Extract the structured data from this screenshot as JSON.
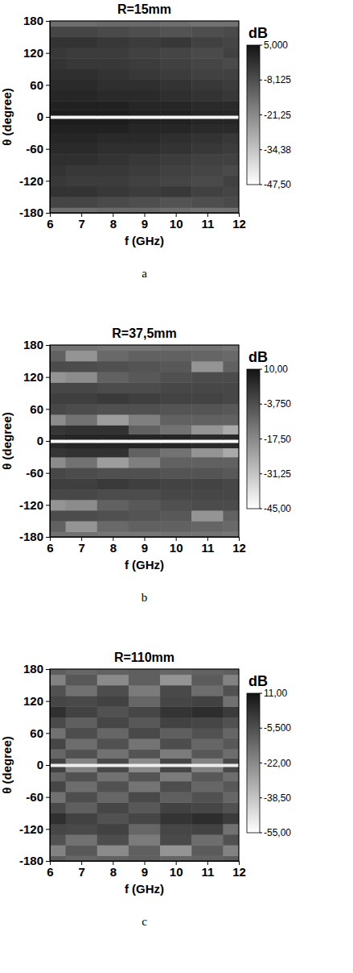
{
  "chart_data": [
    {
      "type": "heatmap",
      "title": "R=15mm",
      "panel_label": "a",
      "x_label": "f (GHz)",
      "y_label": "θ (degree)",
      "x": [
        6,
        7,
        8,
        9,
        10,
        11,
        12
      ],
      "y": [
        -180,
        -160,
        -140,
        -120,
        -100,
        -80,
        -60,
        -40,
        -20,
        -6,
        0,
        6,
        20,
        40,
        60,
        80,
        100,
        120,
        140,
        160,
        180
      ],
      "z": [
        [
          -15,
          -15,
          -14,
          -14,
          -15,
          -16,
          -16
        ],
        [
          -6,
          -6,
          -7,
          -8,
          -9,
          -8,
          -7
        ],
        [
          -2,
          -2,
          -3,
          -4,
          -3,
          -5,
          -6
        ],
        [
          -3,
          -4,
          -4,
          -5,
          -6,
          -7,
          -5
        ],
        [
          -2,
          -3,
          -3,
          -4,
          -5,
          -6,
          -7
        ],
        [
          -1,
          -1,
          -2,
          -3,
          -4,
          -5,
          -5
        ],
        [
          0,
          0,
          -1,
          -1,
          -2,
          -3,
          -4
        ],
        [
          1,
          1,
          0,
          0,
          -1,
          -2,
          -3
        ],
        [
          2,
          2,
          2,
          1,
          1,
          0,
          0
        ],
        [
          3,
          3,
          3,
          2,
          2,
          1,
          1
        ],
        [
          -45,
          -45,
          -45,
          -45,
          -45,
          -45,
          -45
        ],
        [
          3,
          3,
          3,
          2,
          2,
          1,
          1
        ],
        [
          2,
          2,
          2,
          1,
          1,
          0,
          0
        ],
        [
          1,
          1,
          0,
          0,
          -1,
          -2,
          -3
        ],
        [
          0,
          0,
          -1,
          -1,
          -2,
          -3,
          -4
        ],
        [
          -1,
          -1,
          -2,
          -3,
          -4,
          -5,
          -5
        ],
        [
          -2,
          -3,
          -3,
          -4,
          -5,
          -6,
          -7
        ],
        [
          -3,
          -4,
          -4,
          -5,
          -6,
          -7,
          -5
        ],
        [
          -2,
          -2,
          -3,
          -4,
          -3,
          -5,
          -6
        ],
        [
          -6,
          -6,
          -7,
          -8,
          -9,
          -8,
          -7
        ],
        [
          -15,
          -15,
          -14,
          -14,
          -15,
          -16,
          -16
        ]
      ],
      "xlim": [
        6,
        12
      ],
      "ylim": [
        -180,
        180
      ],
      "xticks": [
        6,
        7,
        8,
        9,
        10,
        11,
        12
      ],
      "yticks": [
        -180,
        -120,
        -60,
        0,
        60,
        120,
        180
      ],
      "colorbar": {
        "title": "dB",
        "range": [
          -47.5,
          5
        ],
        "ticks": [
          {
            "value": 5,
            "label": "5,000"
          },
          {
            "value": -8.125,
            "label": "-8,125"
          },
          {
            "value": -21.25,
            "label": "-21,25"
          },
          {
            "value": -34.375,
            "label": "-34,38"
          },
          {
            "value": -47.5,
            "label": "-47,50"
          }
        ]
      }
    },
    {
      "type": "heatmap",
      "title": "R=37,5mm",
      "panel_label": "b",
      "x_label": "f (GHz)",
      "y_label": "θ (degree)",
      "x": [
        6,
        7,
        8,
        9,
        10,
        11,
        12
      ],
      "y": [
        -180,
        -160,
        -140,
        -120,
        -100,
        -80,
        -60,
        -40,
        -20,
        -6,
        0,
        6,
        20,
        40,
        60,
        80,
        100,
        120,
        140,
        160,
        180
      ],
      "z": [
        [
          -12,
          -12,
          -13,
          -13,
          -12,
          -12,
          -13
        ],
        [
          -8,
          -20,
          -10,
          -8,
          -8,
          -9,
          -10
        ],
        [
          -3,
          -3,
          -4,
          -5,
          -6,
          -20,
          -8
        ],
        [
          -20,
          -18,
          -8,
          -6,
          -4,
          -3,
          -3
        ],
        [
          -2,
          -2,
          -3,
          -3,
          -2,
          -2,
          -2
        ],
        [
          0,
          0,
          1,
          0,
          -1,
          -1,
          -2
        ],
        [
          -2,
          -3,
          -4,
          -4,
          -5,
          -5,
          -6
        ],
        [
          -18,
          -12,
          -22,
          -15,
          -8,
          -8,
          -8
        ],
        [
          2,
          3,
          3,
          -8,
          -12,
          -20,
          -25
        ],
        [
          5,
          6,
          6,
          6,
          6,
          5,
          5
        ],
        [
          -44,
          -44,
          -44,
          -44,
          -44,
          -44,
          -44
        ],
        [
          5,
          6,
          6,
          6,
          6,
          5,
          5
        ],
        [
          2,
          3,
          3,
          -8,
          -12,
          -20,
          -25
        ],
        [
          -18,
          -12,
          -22,
          -15,
          -8,
          -8,
          -8
        ],
        [
          -2,
          -3,
          -4,
          -4,
          -5,
          -5,
          -6
        ],
        [
          0,
          0,
          1,
          0,
          -1,
          -1,
          -2
        ],
        [
          -2,
          -2,
          -3,
          -3,
          -2,
          -2,
          -2
        ],
        [
          -20,
          -18,
          -8,
          -6,
          -4,
          -3,
          -3
        ],
        [
          -3,
          -3,
          -4,
          -5,
          -6,
          -20,
          -8
        ],
        [
          -8,
          -20,
          -10,
          -8,
          -8,
          -9,
          -10
        ],
        [
          -12,
          -12,
          -13,
          -13,
          -12,
          -12,
          -13
        ]
      ],
      "xlim": [
        6,
        12
      ],
      "ylim": [
        -180,
        180
      ],
      "xticks": [
        6,
        7,
        8,
        9,
        10,
        11,
        12
      ],
      "yticks": [
        -180,
        -120,
        -60,
        0,
        60,
        120,
        180
      ],
      "colorbar": {
        "title": "dB",
        "range": [
          -45,
          10
        ],
        "ticks": [
          {
            "value": 10,
            "label": "10,00"
          },
          {
            "value": -3.75,
            "label": "-3,750"
          },
          {
            "value": -17.5,
            "label": "-17,50"
          },
          {
            "value": -31.25,
            "label": "-31,25"
          },
          {
            "value": -45,
            "label": "-45,00"
          }
        ]
      }
    },
    {
      "type": "heatmap",
      "title": "R=110mm",
      "panel_label": "c",
      "x_label": "f (GHz)",
      "y_label": "θ (degree)",
      "x": [
        6,
        7,
        8,
        9,
        10,
        11,
        12
      ],
      "y": [
        -180,
        -160,
        -140,
        -120,
        -100,
        -80,
        -60,
        -40,
        -20,
        -6,
        0,
        6,
        20,
        40,
        60,
        80,
        100,
        120,
        140,
        160,
        180
      ],
      "z": [
        [
          -10,
          -12,
          -11,
          -10,
          -12,
          -11,
          -10
        ],
        [
          -20,
          -8,
          -22,
          -10,
          -25,
          -9,
          -20
        ],
        [
          -6,
          -15,
          -5,
          -18,
          -4,
          -14,
          -6
        ],
        [
          -3,
          -4,
          -2,
          -12,
          -3,
          -2,
          -15
        ],
        [
          3,
          -2,
          -6,
          -3,
          2,
          4,
          0
        ],
        [
          -4,
          -10,
          -3,
          -8,
          -2,
          -3,
          -6
        ],
        [
          -15,
          -5,
          -12,
          -4,
          -10,
          -6,
          -12
        ],
        [
          -3,
          -14,
          -6,
          -16,
          -5,
          -12,
          -8
        ],
        [
          -12,
          -6,
          -15,
          -7,
          -18,
          -8,
          -14
        ],
        [
          -2,
          -20,
          -4,
          -22,
          -3,
          -20,
          -4
        ],
        [
          -50,
          -50,
          -50,
          -50,
          -50,
          -50,
          -50
        ],
        [
          -2,
          -20,
          -4,
          -22,
          -3,
          -20,
          -4
        ],
        [
          -12,
          -6,
          -15,
          -7,
          -18,
          -8,
          -14
        ],
        [
          -3,
          -14,
          -6,
          -16,
          -5,
          -12,
          -8
        ],
        [
          -15,
          -5,
          -12,
          -4,
          -10,
          -6,
          -12
        ],
        [
          -4,
          -10,
          -3,
          -8,
          -2,
          -3,
          -6
        ],
        [
          3,
          -2,
          -6,
          -3,
          2,
          4,
          0
        ],
        [
          -3,
          -4,
          -2,
          -12,
          -3,
          -2,
          -15
        ],
        [
          -6,
          -15,
          -5,
          -18,
          -4,
          -14,
          -6
        ],
        [
          -20,
          -8,
          -22,
          -10,
          -25,
          -9,
          -20
        ],
        [
          -10,
          -12,
          -11,
          -10,
          -12,
          -11,
          -10
        ]
      ],
      "xlim": [
        6,
        12
      ],
      "ylim": [
        -180,
        180
      ],
      "xticks": [
        6,
        7,
        8,
        9,
        10,
        11,
        12
      ],
      "yticks": [
        -180,
        -120,
        -60,
        0,
        60,
        120,
        180
      ],
      "colorbar": {
        "title": "dB",
        "range": [
          -55,
          11
        ],
        "ticks": [
          {
            "value": 11,
            "label": "11,00"
          },
          {
            "value": -5.5,
            "label": "-5,500"
          },
          {
            "value": -22,
            "label": "-22,00"
          },
          {
            "value": -38.5,
            "label": "-38,50"
          },
          {
            "value": -55,
            "label": "-55,00"
          }
        ]
      }
    }
  ]
}
